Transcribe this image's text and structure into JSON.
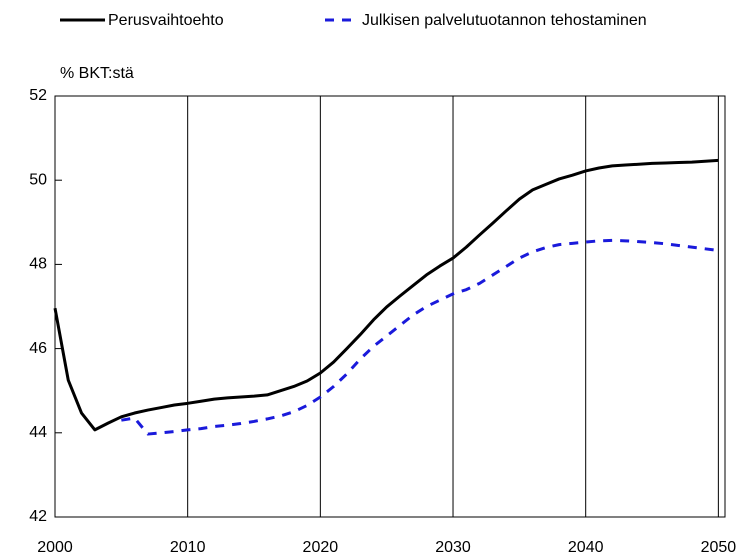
{
  "chart_data": {
    "type": "line",
    "y_axis_label": "% BKT:stä",
    "x": [
      2000,
      2001,
      2002,
      2003,
      2004,
      2005,
      2006,
      2007,
      2008,
      2009,
      2010,
      2011,
      2012,
      2013,
      2014,
      2015,
      2016,
      2017,
      2018,
      2019,
      2020,
      2021,
      2022,
      2023,
      2024,
      2025,
      2026,
      2027,
      2028,
      2029,
      2030,
      2031,
      2032,
      2033,
      2034,
      2035,
      2036,
      2037,
      2038,
      2039,
      2040,
      2041,
      2042,
      2043,
      2044,
      2045,
      2046,
      2047,
      2048,
      2049,
      2050
    ],
    "series": [
      {
        "name": "Perusvaihtoehto",
        "color": "#000000",
        "dash": false,
        "values": [
          46.96,
          45.25,
          44.47,
          44.07,
          44.23,
          44.38,
          44.47,
          44.54,
          44.6,
          44.66,
          44.7,
          44.75,
          44.8,
          44.83,
          44.85,
          44.87,
          44.9,
          45.0,
          45.1,
          45.23,
          45.42,
          45.68,
          46.0,
          46.33,
          46.68,
          46.99,
          47.25,
          47.5,
          47.75,
          47.96,
          48.15,
          48.41,
          48.7,
          48.98,
          49.27,
          49.55,
          49.77,
          49.9,
          50.03,
          50.12,
          50.22,
          50.29,
          50.34,
          50.36,
          50.38,
          50.4,
          50.41,
          50.42,
          50.43,
          50.45,
          50.47
        ]
      },
      {
        "name": "Julkisen palvelutuotannon tehostaminen",
        "color": "#1a1adb",
        "dash": true,
        "values": [
          null,
          null,
          null,
          null,
          null,
          44.3,
          44.35,
          43.97,
          44.0,
          44.03,
          44.07,
          44.1,
          44.15,
          44.18,
          44.22,
          44.27,
          44.33,
          44.4,
          44.5,
          44.65,
          44.85,
          45.1,
          45.4,
          45.75,
          46.05,
          46.3,
          46.55,
          46.8,
          47.0,
          47.15,
          47.3,
          47.4,
          47.55,
          47.75,
          47.95,
          48.15,
          48.3,
          48.4,
          48.47,
          48.5,
          48.53,
          48.56,
          48.57,
          48.56,
          48.54,
          48.52,
          48.49,
          48.45,
          48.41,
          48.37,
          48.33
        ]
      }
    ],
    "xlim": [
      2000,
      2050.5
    ],
    "xticks": [
      2000,
      2010,
      2020,
      2030,
      2040,
      2050
    ],
    "ylim": [
      42,
      52
    ],
    "yticks": [
      42,
      44,
      46,
      48,
      50,
      52
    ],
    "grid": "x",
    "legend": "top"
  }
}
